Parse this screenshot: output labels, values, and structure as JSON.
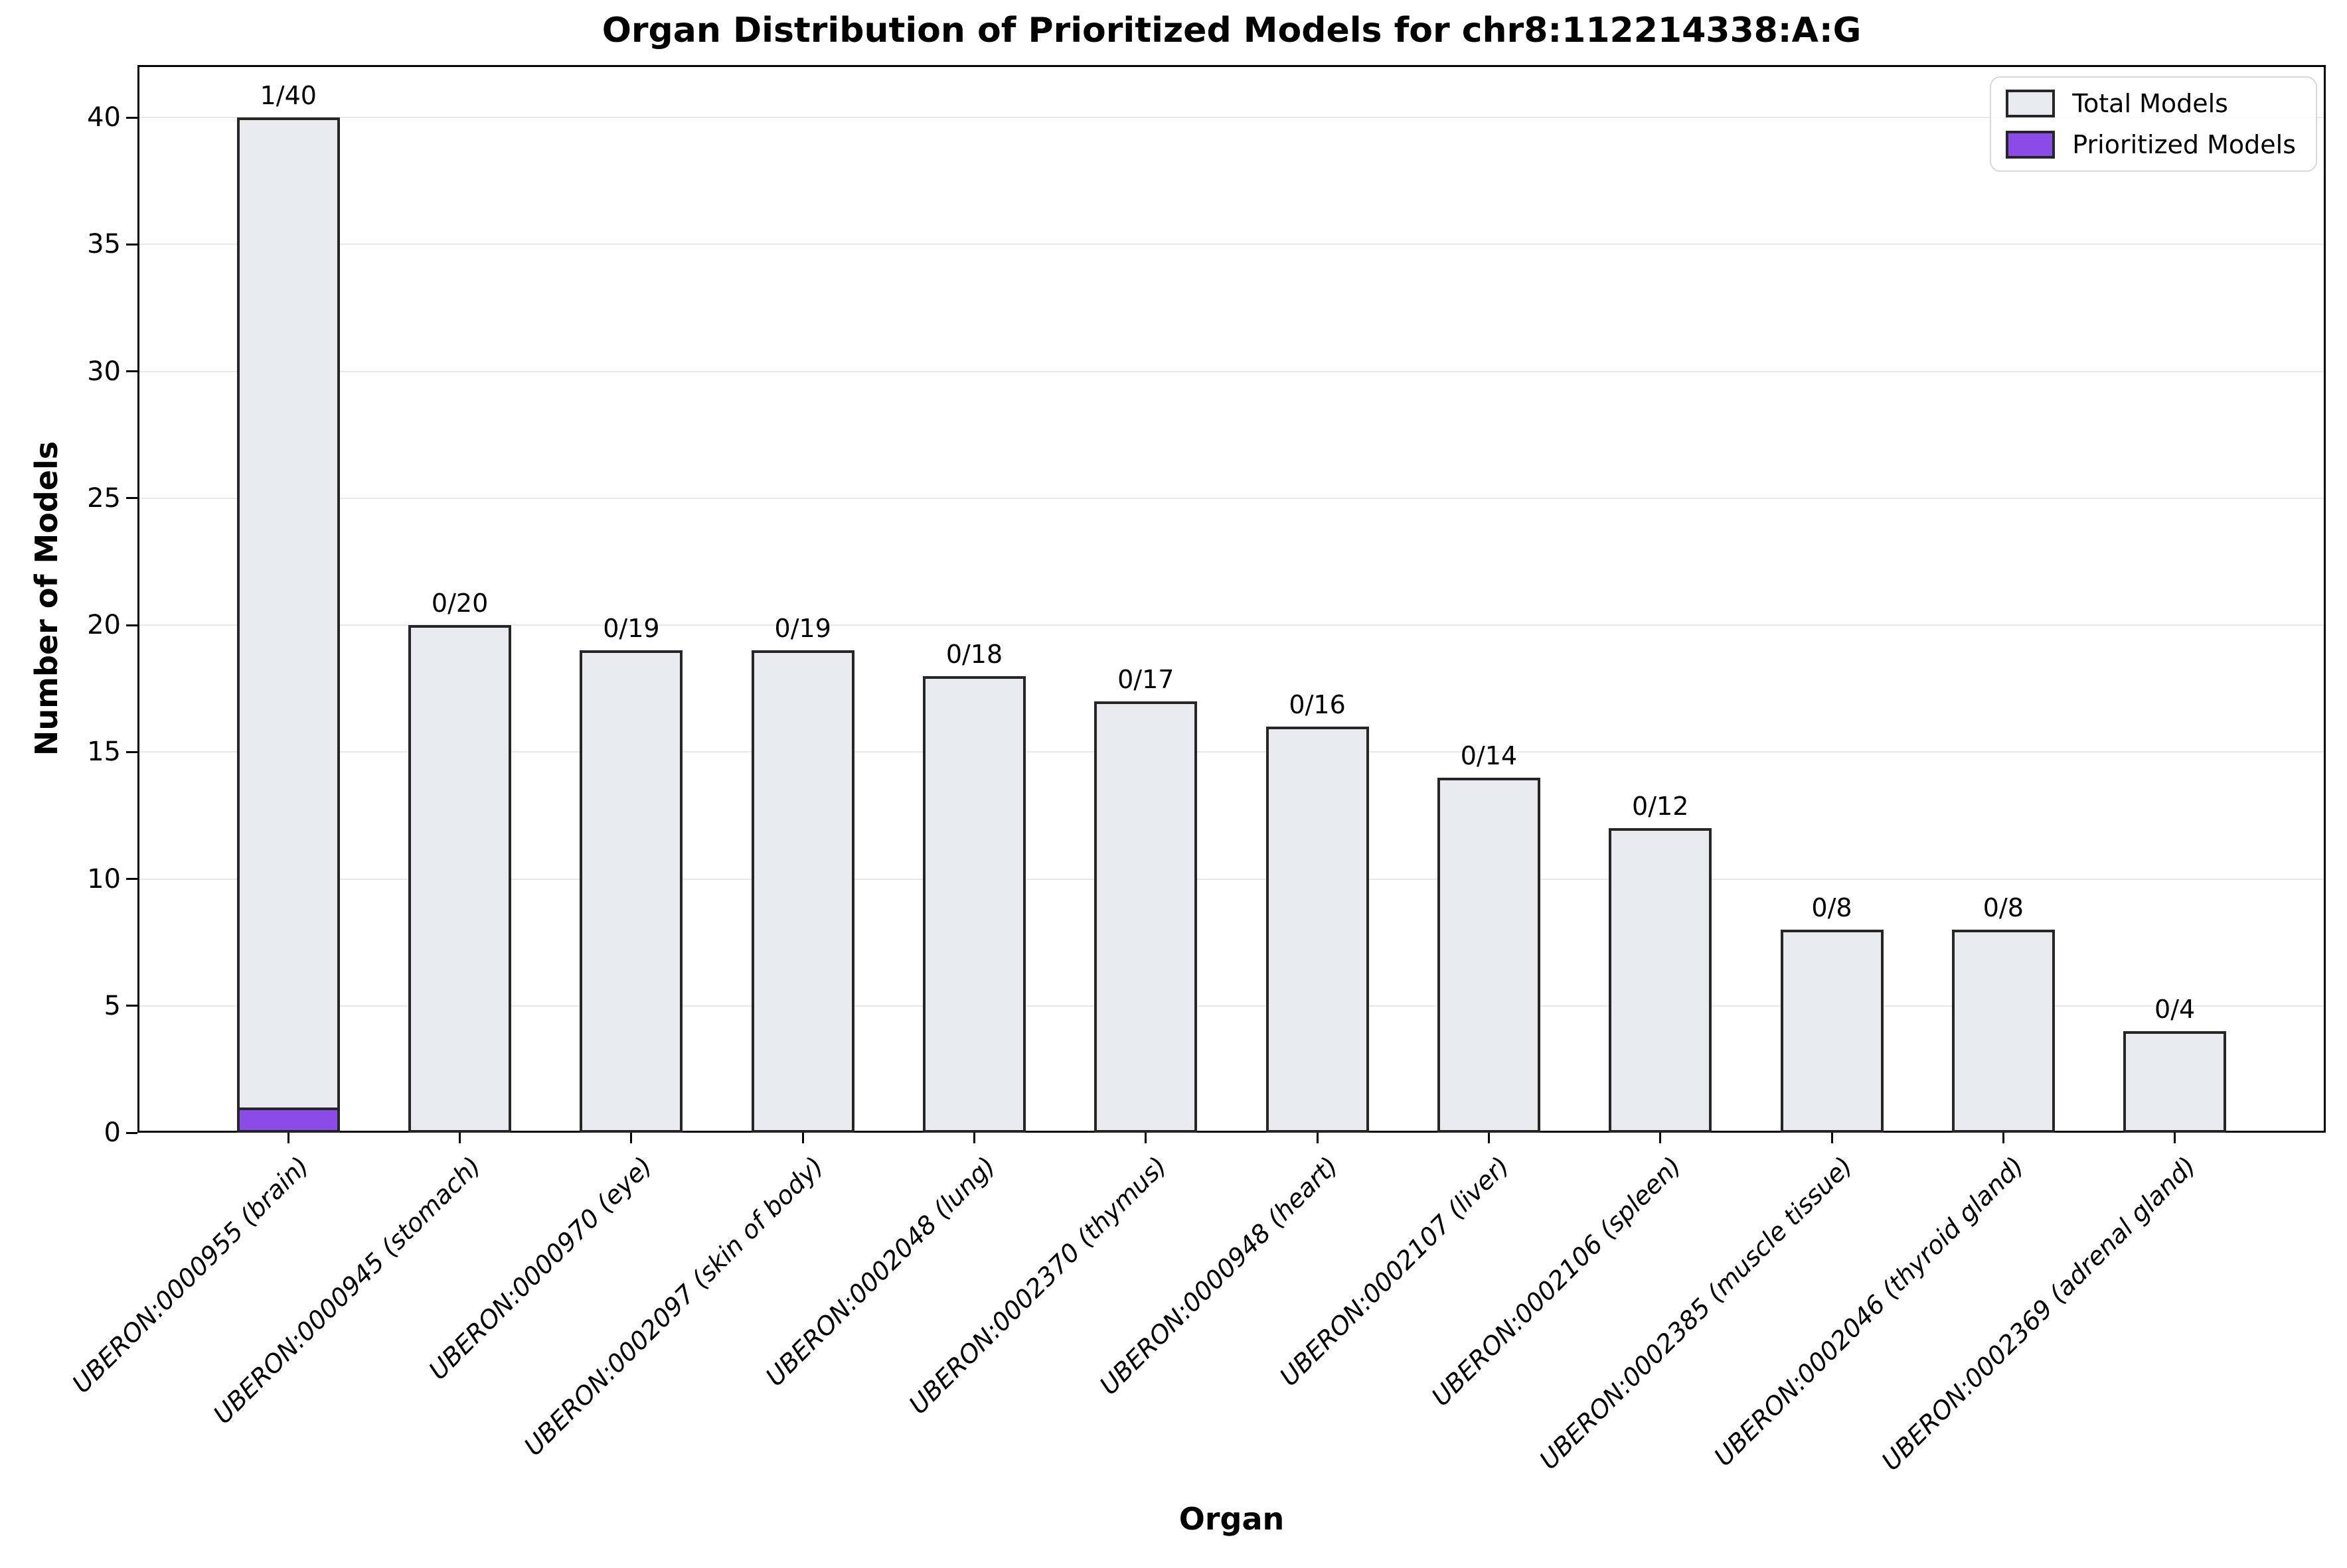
{
  "title": "Organ Distribution of Prioritized Models for chr8:112214338:A:G",
  "axes": {
    "xlabel": "Organ",
    "ylabel": "Number of Models"
  },
  "legend": {
    "entries": [
      {
        "label": "Total Models",
        "color": "#e9e9f0"
      },
      {
        "label": "Prioritized Models",
        "color": "#8a4be8"
      }
    ]
  },
  "colors": {
    "total_fill": "#e9e9f0",
    "prioritized_fill": "#8a4be8",
    "bar_edge": "#262626",
    "grid": "#e8e8e8",
    "spine": "#000000"
  },
  "chart_data": {
    "type": "bar",
    "title": "Organ Distribution of Prioritized Models for chr8:112214338:A:G",
    "xlabel": "Organ",
    "ylabel": "Number of Models",
    "ylim": [
      0,
      42
    ],
    "yticks": [
      0,
      5,
      10,
      15,
      20,
      25,
      30,
      35,
      40
    ],
    "grid": "horizontal",
    "legend_position": "upper right",
    "categories": [
      "UBERON:0000955 (brain)",
      "UBERON:0000945 (stomach)",
      "UBERON:0000970 (eye)",
      "UBERON:0002097 (skin of body)",
      "UBERON:0002048 (lung)",
      "UBERON:0002370 (thymus)",
      "UBERON:0000948 (heart)",
      "UBERON:0002107 (liver)",
      "UBERON:0002106 (spleen)",
      "UBERON:0002385 (muscle tissue)",
      "UBERON:0002046 (thyroid gland)",
      "UBERON:0002369 (adrenal gland)"
    ],
    "series": [
      {
        "name": "Total Models",
        "values": [
          40,
          20,
          19,
          19,
          18,
          17,
          16,
          14,
          12,
          8,
          8,
          4
        ]
      },
      {
        "name": "Prioritized Models",
        "values": [
          1,
          0,
          0,
          0,
          0,
          0,
          0,
          0,
          0,
          0,
          0,
          0
        ]
      }
    ],
    "bar_labels": [
      "1/40",
      "0/20",
      "0/19",
      "0/19",
      "0/18",
      "0/17",
      "0/16",
      "0/14",
      "0/12",
      "0/8",
      "0/8",
      "0/4"
    ]
  }
}
